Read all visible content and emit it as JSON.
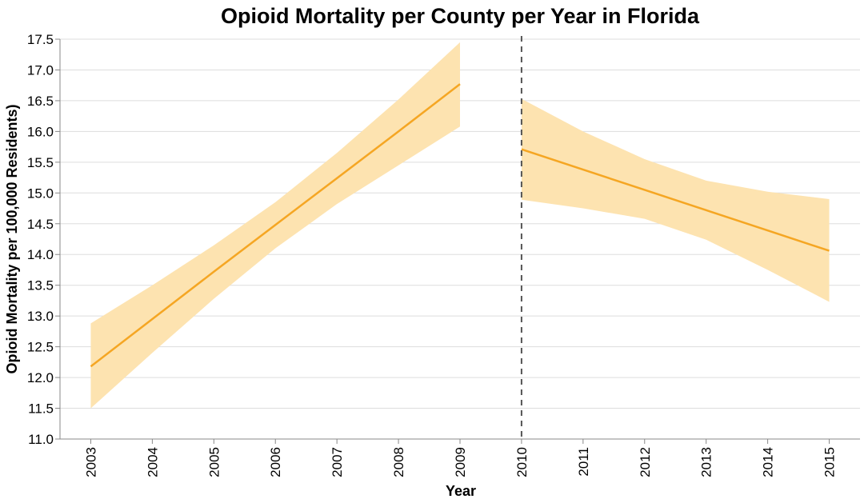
{
  "chart_data": {
    "type": "line",
    "title": "Opioid Mortality per County per Year in Florida",
    "xlabel": "Year",
    "ylabel": "Opioid Mortality per 100,000 Residents)",
    "x_categories": [
      "2003",
      "2004",
      "2005",
      "2006",
      "2007",
      "2008",
      "2009",
      "2010",
      "2011",
      "2012",
      "2013",
      "2014",
      "2015"
    ],
    "y_ticks": [
      "11.0",
      "11.5",
      "12.0",
      "12.5",
      "13.0",
      "13.5",
      "14.0",
      "14.5",
      "15.0",
      "15.5",
      "16.0",
      "16.5",
      "17.0",
      "17.5"
    ],
    "ylim": [
      11.0,
      17.5
    ],
    "grid": true,
    "policy_line_year": "2010",
    "colors": {
      "line": "#f5a623",
      "band": "#fde3b0",
      "policy_line": "#555555"
    },
    "segments": [
      {
        "years": [
          "2003",
          "2004",
          "2005",
          "2006",
          "2007",
          "2008",
          "2009"
        ],
        "values": [
          12.18,
          12.95,
          13.72,
          14.48,
          15.24,
          16.0,
          16.77
        ],
        "upper": [
          12.88,
          13.5,
          14.15,
          14.85,
          15.65,
          16.52,
          17.45
        ],
        "lower": [
          11.5,
          12.4,
          13.28,
          14.1,
          14.82,
          15.45,
          16.08
        ]
      },
      {
        "years": [
          "2010",
          "2011",
          "2012",
          "2013",
          "2014",
          "2015"
        ],
        "values": [
          15.71,
          15.38,
          15.05,
          14.72,
          14.39,
          14.06
        ],
        "upper": [
          16.53,
          16.0,
          15.55,
          15.2,
          15.02,
          14.9
        ],
        "lower": [
          14.89,
          14.75,
          14.58,
          14.24,
          13.75,
          13.23
        ]
      }
    ]
  }
}
